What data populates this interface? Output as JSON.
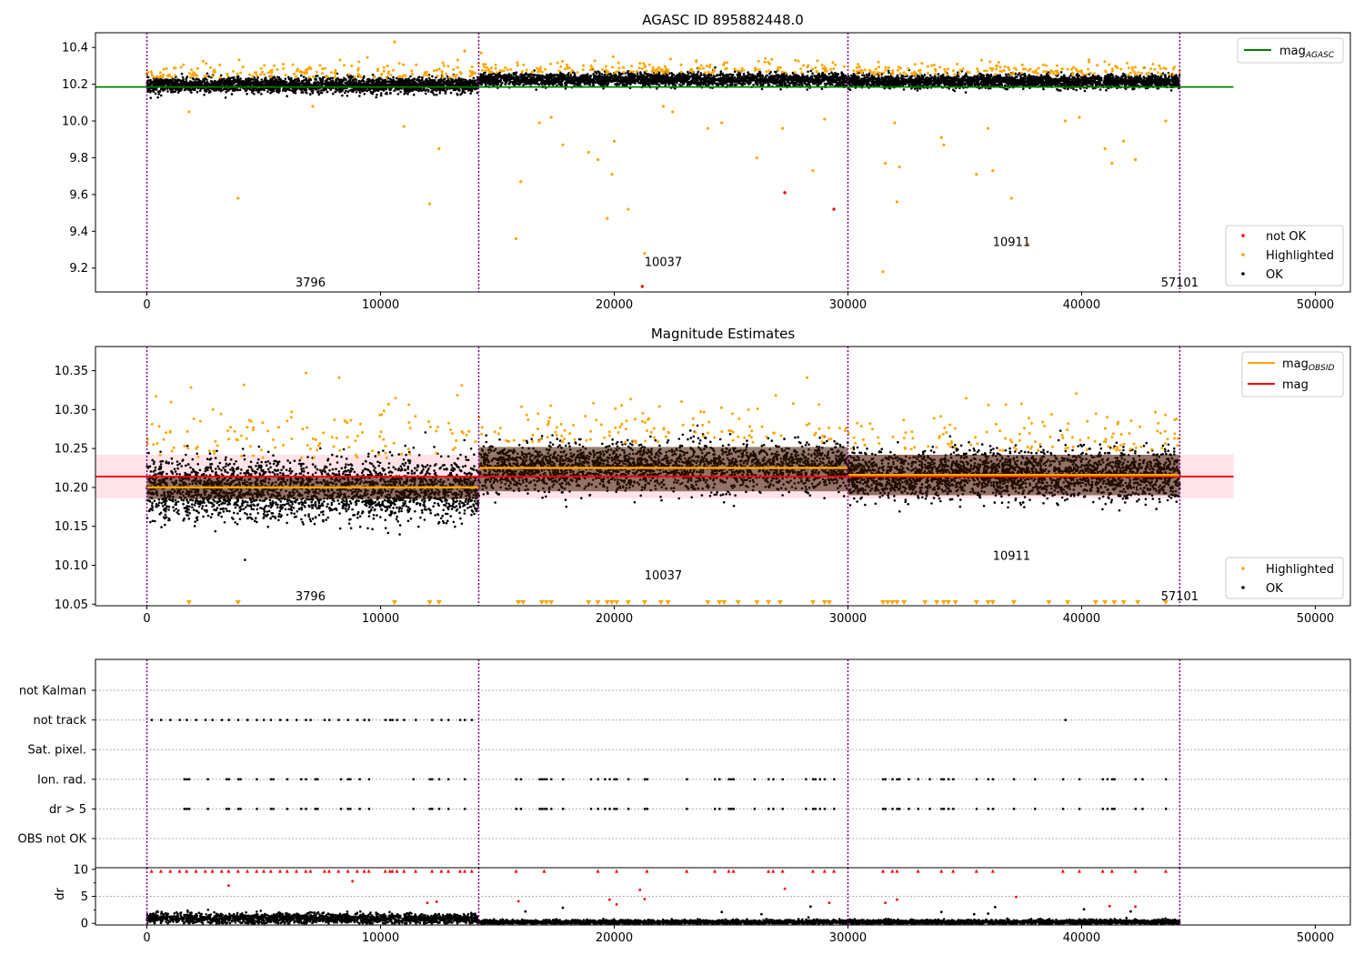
{
  "figure": {
    "colors": {
      "ok": "#000000",
      "highlighted": "#ffa500",
      "not_ok": "#ff0000",
      "agasc_line": "#008000",
      "obs_line": "#ffa500",
      "mag_line": "#ff0000",
      "vline": "#800080",
      "band": "#ffc0cb"
    }
  },
  "chart_data": [
    {
      "type": "scatter",
      "title": "AGASC ID 895882448.0",
      "xlim": [
        -2200,
        51500
      ],
      "ylim": [
        9.07,
        10.48
      ],
      "xticks": [
        0,
        10000,
        20000,
        30000,
        40000,
        50000
      ],
      "xtick_labels": [
        "0",
        "10000",
        "20000",
        "30000",
        "40000",
        "50000"
      ],
      "yticks": [
        9.2,
        9.4,
        9.6,
        9.8,
        10.0,
        10.2,
        10.4
      ],
      "ytick_labels": [
        "9.2",
        "9.4",
        "9.6",
        "9.8",
        "10.0",
        "10.2",
        "10.4"
      ],
      "grid": false,
      "obsid_boundaries": [
        0,
        14200,
        30000,
        44200
      ],
      "obsid_labels": [
        {
          "text": "3796",
          "x": 7000,
          "y": 9.1
        },
        {
          "text": "10037",
          "x": 22100,
          "y": 9.21
        },
        {
          "text": "10911",
          "x": 37000,
          "y": 9.32
        },
        {
          "text": "57101",
          "x": 44200,
          "y": 9.1
        }
      ],
      "mag_agasc": {
        "value": 10.185,
        "x_range": [
          -2200,
          46500
        ]
      },
      "segments": [
        {
          "x_range": [
            0,
            14200
          ],
          "center": 10.195,
          "spread": 0.04
        },
        {
          "x_range": [
            14200,
            30000
          ],
          "center": 10.225,
          "spread": 0.035
        },
        {
          "x_range": [
            30000,
            44200
          ],
          "center": 10.215,
          "spread": 0.035
        }
      ],
      "not_ok_points": [
        {
          "x": 21200,
          "y": 9.1
        },
        {
          "x": 27300,
          "y": 9.61
        },
        {
          "x": 29400,
          "y": 9.52
        }
      ],
      "highlighted_outliers": [
        {
          "x": 3900,
          "y": 9.58
        },
        {
          "x": 12100,
          "y": 9.55
        },
        {
          "x": 12500,
          "y": 9.85
        },
        {
          "x": 11000,
          "y": 9.97
        },
        {
          "x": 1800,
          "y": 10.05
        },
        {
          "x": 10600,
          "y": 10.43
        },
        {
          "x": 7100,
          "y": 10.08
        },
        {
          "x": 15800,
          "y": 9.36
        },
        {
          "x": 16000,
          "y": 9.67
        },
        {
          "x": 16800,
          "y": 9.99
        },
        {
          "x": 17300,
          "y": 10.02
        },
        {
          "x": 17800,
          "y": 9.87
        },
        {
          "x": 18900,
          "y": 9.83
        },
        {
          "x": 19300,
          "y": 9.79
        },
        {
          "x": 19700,
          "y": 9.47
        },
        {
          "x": 19900,
          "y": 9.71
        },
        {
          "x": 20000,
          "y": 9.89
        },
        {
          "x": 20600,
          "y": 9.52
        },
        {
          "x": 21300,
          "y": 9.28
        },
        {
          "x": 22100,
          "y": 10.08
        },
        {
          "x": 22500,
          "y": 10.05
        },
        {
          "x": 24000,
          "y": 9.96
        },
        {
          "x": 24600,
          "y": 9.99
        },
        {
          "x": 26100,
          "y": 9.8
        },
        {
          "x": 27200,
          "y": 9.96
        },
        {
          "x": 28500,
          "y": 9.73
        },
        {
          "x": 29000,
          "y": 10.01
        },
        {
          "x": 31500,
          "y": 9.18
        },
        {
          "x": 31600,
          "y": 9.77
        },
        {
          "x": 32000,
          "y": 9.99
        },
        {
          "x": 32100,
          "y": 9.56
        },
        {
          "x": 32200,
          "y": 9.75
        },
        {
          "x": 34000,
          "y": 9.91
        },
        {
          "x": 34100,
          "y": 9.87
        },
        {
          "x": 35500,
          "y": 9.71
        },
        {
          "x": 36000,
          "y": 9.96
        },
        {
          "x": 36200,
          "y": 9.73
        },
        {
          "x": 37000,
          "y": 9.58
        },
        {
          "x": 37700,
          "y": 9.33
        },
        {
          "x": 39300,
          "y": 10.0
        },
        {
          "x": 39900,
          "y": 10.02
        },
        {
          "x": 41000,
          "y": 9.85
        },
        {
          "x": 41300,
          "y": 9.77
        },
        {
          "x": 41800,
          "y": 9.89
        },
        {
          "x": 42300,
          "y": 9.79
        },
        {
          "x": 43600,
          "y": 10.0
        },
        {
          "x": 14300,
          "y": 10.37
        },
        {
          "x": 13600,
          "y": 10.38
        }
      ],
      "legends": [
        {
          "position": "upper-right",
          "entries": [
            {
              "label": "mag_AGASC",
              "marker": "line",
              "color": "#008000"
            }
          ]
        },
        {
          "position": "lower-right",
          "entries": [
            {
              "label": "not OK",
              "marker": "dot",
              "color": "#ff0000"
            },
            {
              "label": "Highlighted",
              "marker": "dot",
              "color": "#ffa500"
            },
            {
              "label": "OK",
              "marker": "dot",
              "color": "#000000"
            }
          ]
        }
      ]
    },
    {
      "type": "scatter",
      "title": "Magnitude Estimates",
      "xlim": [
        -2200,
        51500
      ],
      "ylim": [
        10.048,
        10.381
      ],
      "xticks": [
        0,
        10000,
        20000,
        30000,
        40000,
        50000
      ],
      "xtick_labels": [
        "0",
        "10000",
        "20000",
        "30000",
        "40000",
        "50000"
      ],
      "yticks": [
        10.05,
        10.1,
        10.15,
        10.2,
        10.25,
        10.3,
        10.35
      ],
      "ytick_labels": [
        "10.05",
        "10.10",
        "10.15",
        "10.20",
        "10.25",
        "10.30",
        "10.35"
      ],
      "grid": false,
      "obsid_boundaries": [
        0,
        14200,
        30000,
        44200
      ],
      "obsid_labels": [
        {
          "text": "3796",
          "x": 7000,
          "y": 10.055
        },
        {
          "text": "10037",
          "x": 22100,
          "y": 10.082
        },
        {
          "text": "10911",
          "x": 37000,
          "y": 10.107
        },
        {
          "text": "57101",
          "x": 44200,
          "y": 10.055
        }
      ],
      "mag": {
        "value": 10.214,
        "band": [
          10.186,
          10.242
        ],
        "x_range": [
          -2200,
          46500
        ]
      },
      "mag_obsid": [
        {
          "x_range": [
            0,
            14200
          ],
          "value": 10.2,
          "band": [
            10.185,
            10.215
          ]
        },
        {
          "x_range": [
            14200,
            30000
          ],
          "value": 10.225,
          "band": [
            10.195,
            10.252
          ]
        },
        {
          "x_range": [
            30000,
            44200
          ],
          "value": 10.216,
          "band": [
            10.19,
            10.242
          ]
        }
      ],
      "segments": [
        {
          "x_range": [
            0,
            14200
          ],
          "center": 10.198,
          "spread": 0.038
        },
        {
          "x_range": [
            14200,
            30000
          ],
          "center": 10.226,
          "spread": 0.03
        },
        {
          "x_range": [
            30000,
            44200
          ],
          "center": 10.216,
          "spread": 0.03
        }
      ],
      "clipped_markers_x": [
        1800,
        3900,
        10600,
        12100,
        12500,
        15900,
        16100,
        16900,
        17100,
        17300,
        18900,
        19300,
        19700,
        19900,
        20100,
        20600,
        21300,
        22000,
        22300,
        24000,
        24500,
        24700,
        25300,
        26100,
        26600,
        27100,
        28500,
        29000,
        29200,
        31500,
        31700,
        31900,
        32100,
        32400,
        33300,
        33800,
        34100,
        34300,
        34600,
        35500,
        36000,
        36200,
        37100,
        38600,
        39400,
        40600,
        41000,
        41400,
        41800,
        42400,
        43600
      ],
      "legends": [
        {
          "position": "upper-right",
          "entries": [
            {
              "label": "mag_OBSID",
              "marker": "line",
              "color": "#ffa500"
            },
            {
              "label": "mag",
              "marker": "line",
              "color": "#ff0000"
            }
          ]
        },
        {
          "position": "lower-right",
          "entries": [
            {
              "label": "Highlighted",
              "marker": "dot",
              "color": "#ffa500"
            },
            {
              "label": "OK",
              "marker": "dot",
              "color": "#000000"
            }
          ]
        }
      ]
    },
    {
      "type": "scatter",
      "title": "",
      "xlim": [
        -2200,
        51500
      ],
      "categories": [
        "not Kalman",
        "not track",
        "Sat. pixel.",
        "Ion. rad.",
        "dr > 5",
        "OBS not OK"
      ],
      "obsid_boundaries": [
        0,
        14200,
        30000,
        44200
      ],
      "flag_x": {
        "not track": [
          200,
          600,
          1000,
          1400,
          1700,
          2100,
          2500,
          2800,
          3200,
          3500,
          3900,
          4300,
          4700,
          5000,
          5300,
          5700,
          6000,
          6400,
          6800,
          7000,
          7600,
          7800,
          8200,
          8600,
          9000,
          9300,
          9500,
          10200,
          10400,
          10500,
          10700,
          11000,
          11500,
          12200,
          12600,
          12900,
          13400,
          13600,
          13900,
          39300
        ],
        "Ion. rad.": [
          1600,
          1700,
          1800,
          2600,
          3400,
          3500,
          3900,
          4000,
          4700,
          5300,
          5400,
          6000,
          6600,
          6800,
          7200,
          7300,
          8300,
          8600,
          8700,
          9100,
          9500,
          11400,
          12100,
          12200,
          12500,
          12900,
          13600,
          15800,
          16000,
          16800,
          16900,
          17000,
          17100,
          17300,
          17800,
          19000,
          19300,
          19600,
          19800,
          20000,
          20100,
          20600,
          21300,
          21400,
          23100,
          24300,
          24500,
          24900,
          25000,
          25100,
          26000,
          26600,
          26800,
          27200,
          28200,
          28500,
          28600,
          28800,
          29000,
          29400,
          31500,
          31600,
          31900,
          32100,
          32200,
          32600,
          33000,
          33500,
          34000,
          34100,
          34300,
          34500,
          35500,
          36000,
          36200,
          37100,
          38000,
          39200,
          39900,
          40900,
          41100,
          41300,
          41400,
          42300,
          42600,
          43600
        ],
        "dr > 5": [
          1600,
          1700,
          1800,
          2600,
          3400,
          3500,
          3900,
          4000,
          4700,
          5300,
          5400,
          6000,
          6600,
          6800,
          7200,
          7300,
          8300,
          8600,
          8700,
          9100,
          9500,
          11400,
          12100,
          12200,
          12500,
          12900,
          13600,
          15800,
          16000,
          16800,
          16900,
          17000,
          17100,
          17300,
          17800,
          19000,
          19300,
          19600,
          19800,
          20000,
          20100,
          20600,
          21300,
          21400,
          23100,
          24300,
          24500,
          24900,
          25000,
          25100,
          26000,
          26600,
          26800,
          27200,
          28200,
          28500,
          28600,
          28800,
          29000,
          29400,
          31500,
          31600,
          31900,
          32100,
          32200,
          32600,
          33000,
          33500,
          34000,
          34100,
          34300,
          34500,
          35500,
          36000,
          36200,
          37100,
          38000,
          39200,
          39900,
          40900,
          41100,
          41300,
          41400,
          42300,
          42600,
          43600
        ]
      }
    },
    {
      "type": "scatter",
      "title": "",
      "ylabel": "dr",
      "xlim": [
        -2200,
        51500
      ],
      "ylim": [
        -0.3,
        10.3
      ],
      "xticks": [
        0,
        10000,
        20000,
        30000,
        40000,
        50000
      ],
      "xtick_labels": [
        "0",
        "10000",
        "20000",
        "30000",
        "40000",
        "50000"
      ],
      "yticks": [
        0,
        5,
        10
      ],
      "ytick_labels": [
        "0",
        "5",
        "10"
      ],
      "obsid_boundaries": [
        0,
        14200,
        30000,
        44200
      ],
      "clipped_x": [
        200,
        600,
        1000,
        1400,
        1700,
        2100,
        2500,
        2800,
        3200,
        3500,
        3900,
        4300,
        4700,
        5000,
        5300,
        5700,
        6000,
        6400,
        6800,
        7000,
        7600,
        7800,
        8200,
        8600,
        9000,
        9300,
        9500,
        10200,
        10400,
        10500,
        10700,
        11000,
        11500,
        12200,
        12600,
        12900,
        13400,
        13600,
        13900,
        15800,
        17000,
        19300,
        20100,
        21400,
        23100,
        24300,
        24900,
        25100,
        26600,
        26800,
        27200,
        28500,
        29000,
        29400,
        31500,
        31900,
        32100,
        33000,
        34000,
        34500,
        35500,
        36200,
        39200,
        39900,
        40900,
        41300,
        42300,
        43600
      ],
      "scattered_points": [
        {
          "x": 3500,
          "y": 7.0,
          "c": "#ff0000"
        },
        {
          "x": 8800,
          "y": 7.8,
          "c": "#ff0000"
        },
        {
          "x": 15900,
          "y": 4.1,
          "c": "#ff0000"
        },
        {
          "x": 16200,
          "y": 2.2,
          "c": "#000000"
        },
        {
          "x": 17800,
          "y": 2.9,
          "c": "#000000"
        },
        {
          "x": 19800,
          "y": 4.4,
          "c": "#ff0000"
        },
        {
          "x": 20100,
          "y": 3.5,
          "c": "#ff0000"
        },
        {
          "x": 21100,
          "y": 6.2,
          "c": "#ff0000"
        },
        {
          "x": 21300,
          "y": 4.5,
          "c": "#ff0000"
        },
        {
          "x": 24600,
          "y": 2.1,
          "c": "#000000"
        },
        {
          "x": 26300,
          "y": 1.7,
          "c": "#000000"
        },
        {
          "x": 27300,
          "y": 6.4,
          "c": "#ff0000"
        },
        {
          "x": 28400,
          "y": 3.1,
          "c": "#000000"
        },
        {
          "x": 29200,
          "y": 3.8,
          "c": "#ff0000"
        },
        {
          "x": 31600,
          "y": 3.8,
          "c": "#ff0000"
        },
        {
          "x": 32100,
          "y": 4.4,
          "c": "#ff0000"
        },
        {
          "x": 34000,
          "y": 2.1,
          "c": "#000000"
        },
        {
          "x": 35400,
          "y": 1.7,
          "c": "#000000"
        },
        {
          "x": 36300,
          "y": 3.0,
          "c": "#000000"
        },
        {
          "x": 37200,
          "y": 4.9,
          "c": "#ff0000"
        },
        {
          "x": 40100,
          "y": 2.6,
          "c": "#000000"
        },
        {
          "x": 41200,
          "y": 3.2,
          "c": "#ff0000"
        },
        {
          "x": 42100,
          "y": 2.2,
          "c": "#000000"
        },
        {
          "x": 42300,
          "y": 3.1,
          "c": "#ff0000"
        },
        {
          "x": 12000,
          "y": 3.8,
          "c": "#ff0000"
        },
        {
          "x": 12400,
          "y": 4.0,
          "c": "#ff0000"
        },
        {
          "x": 36000,
          "y": 1.8,
          "c": "#000000"
        }
      ],
      "segments": [
        {
          "x_range": [
            0,
            14200
          ],
          "center": 0.9,
          "spread": 0.45
        },
        {
          "x_range": [
            14200,
            30000
          ],
          "center": 0.25,
          "spread": 0.2
        },
        {
          "x_range": [
            30000,
            44200
          ],
          "center": 0.25,
          "spread": 0.2
        }
      ]
    }
  ]
}
